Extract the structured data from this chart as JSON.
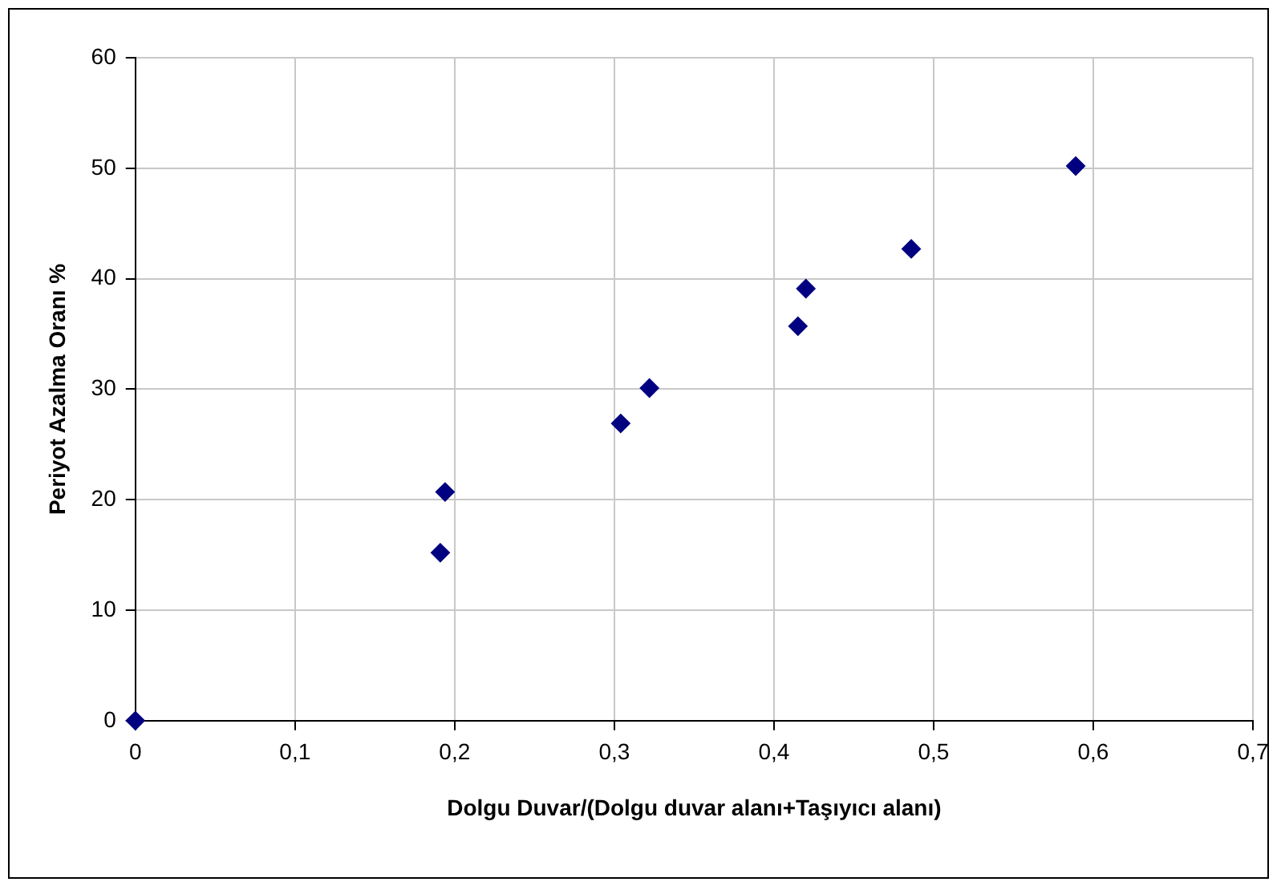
{
  "chart_data": {
    "type": "scatter",
    "xlabel": "Dolgu Duvar/(Dolgu duvar alanı+Taşıyıcı alanı)",
    "ylabel": "Periyot Azalma Oranı %",
    "series": [
      {
        "color": "#000080",
        "x": [
          0,
          0.191,
          0.194,
          0.304,
          0.322,
          0.415,
          0.42,
          0.486,
          0.589
        ],
        "values": [
          0,
          15.2,
          20.7,
          26.9,
          30.1,
          35.7,
          39.1,
          42.7,
          50.2
        ]
      }
    ],
    "xlim": [
      0,
      0.7
    ],
    "xticks": [
      0,
      {
        "value": 0.1,
        "label": "0,1"
      },
      {
        "value": 0.2,
        "label": "0,2"
      },
      {
        "value": 0.3,
        "label": "0,3"
      },
      {
        "value": 0.4,
        "label": "0,4"
      },
      {
        "value": 0.5,
        "label": "0,5"
      },
      {
        "value": 0.6,
        "label": "0,6"
      },
      {
        "value": 0.7,
        "label": "0,7"
      }
    ],
    "ylim": [
      0,
      60
    ],
    "yticks": [
      0,
      10,
      20,
      30,
      40,
      50,
      60
    ],
    "grid": true,
    "legend": false,
    "marker": "diamond"
  }
}
